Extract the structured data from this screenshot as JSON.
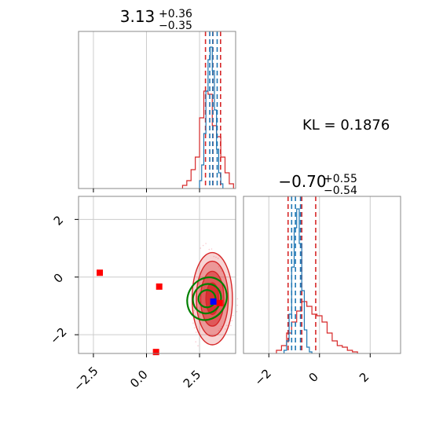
{
  "chart_data": {
    "type": "corner",
    "annotation": "KL = 0.1876",
    "colors": {
      "red": "#d62728",
      "blue": "#1f77b4",
      "green": "#008000",
      "marker_red": "#ff0000",
      "marker_blue": "#0000ff"
    },
    "panels": [
      {
        "id": "hist-param1",
        "type": "histogram",
        "title_value": "3.13",
        "title_plus": "+0.36",
        "title_minus": "−0.35",
        "xlim": [
          -3.2,
          4.2
        ],
        "x_ticks_labeled": false,
        "grid": true,
        "series": [
          {
            "name": "",
            "color": "#d62728",
            "bin_edges": [
              1.7,
              1.9,
              2.1,
              2.3,
              2.5,
              2.7,
              2.9,
              3.1,
              3.3,
              3.5,
              3.7,
              3.9,
              4.1
            ],
            "counts": [
              0.02,
              0.05,
              0.12,
              0.2,
              0.45,
              0.62,
              0.6,
              0.4,
              0.33,
              0.2,
              0.1,
              0.03
            ],
            "quantiles": [
              2.78,
              3.13,
              3.49
            ]
          },
          {
            "name": "",
            "color": "#1f77b4",
            "bin_edges": [
              2.5,
              2.6,
              2.7,
              2.8,
              2.9,
              3.0,
              3.1,
              3.2,
              3.3,
              3.4,
              3.5,
              3.6
            ],
            "counts": [
              0.05,
              0.15,
              0.35,
              0.62,
              0.82,
              0.9,
              0.75,
              0.5,
              0.25,
              0.1,
              0.03
            ],
            "quantiles": [
              2.98,
              3.12,
              3.33
            ]
          }
        ]
      },
      {
        "id": "scatter-2d",
        "type": "contour",
        "xlim": [
          -3.2,
          4.2
        ],
        "ylim": [
          -2.65,
          2.8
        ],
        "x_ticks": [
          -2.5,
          0.0,
          2.5
        ],
        "x_tick_labels": [
          "−2.5",
          "0.0",
          "2.5"
        ],
        "y_ticks": [
          -2,
          0,
          2
        ],
        "y_tick_labels": [
          "−2",
          "0",
          "2"
        ],
        "grid": true,
        "red_contours": {
          "center": [
            3.1,
            -0.75
          ],
          "levels": [
            {
              "rx": 0.95,
              "ry": 1.6,
              "opacity": 0.2
            },
            {
              "rx": 0.75,
              "ry": 1.3,
              "opacity": 0.35
            },
            {
              "rx": 0.55,
              "ry": 0.95,
              "opacity": 0.55
            },
            {
              "rx": 0.3,
              "ry": 0.55,
              "opacity": 0.8
            }
          ]
        },
        "green_contours": {
          "center": [
            2.85,
            -0.75
          ],
          "angle": 28,
          "levels": [
            {
              "rx": 0.9,
              "ry": 0.38
            },
            {
              "rx": 0.65,
              "ry": 0.26
            },
            {
              "rx": 0.4,
              "ry": 0.15
            }
          ]
        },
        "red_markers": [
          [
            -2.2,
            0.15
          ],
          [
            0.6,
            -0.33
          ],
          [
            0.45,
            -2.6
          ],
          [
            3.45,
            -0.9
          ]
        ],
        "blue_marker": [
          3.15,
          -0.85
        ]
      },
      {
        "id": "hist-param2",
        "type": "histogram",
        "title_value": "−0.70",
        "title_plus": "+0.55",
        "title_minus": "−0.54",
        "xlim": [
          -3.0,
          3.2
        ],
        "x_ticks": [
          -2,
          0,
          2
        ],
        "x_tick_labels": [
          "−2",
          "0",
          "2"
        ],
        "grid": true,
        "series": [
          {
            "name": "",
            "color": "#d62728",
            "bin_edges": [
              -1.7,
              -1.5,
              -1.3,
              -1.1,
              -0.9,
              -0.7,
              -0.5,
              -0.3,
              -0.1,
              0.1,
              0.3,
              0.5,
              0.7,
              0.9,
              1.1,
              1.3,
              1.5
            ],
            "counts": [
              0.02,
              0.05,
              0.13,
              0.2,
              0.27,
              0.33,
              0.3,
              0.25,
              0.24,
              0.2,
              0.13,
              0.08,
              0.05,
              0.04,
              0.02,
              0.01
            ],
            "quantiles": [
              -1.24,
              -0.7,
              -0.15
            ]
          },
          {
            "name": "",
            "color": "#1f77b4",
            "bin_edges": [
              -1.4,
              -1.3,
              -1.2,
              -1.1,
              -1.0,
              -0.9,
              -0.8,
              -0.7,
              -0.6,
              -0.5,
              -0.4,
              -0.3
            ],
            "counts": [
              0.02,
              0.08,
              0.25,
              0.55,
              0.8,
              0.92,
              0.7,
              0.4,
              0.15,
              0.04,
              0.01
            ],
            "quantiles": [
              -1.1,
              -0.95,
              -0.75
            ]
          }
        ]
      }
    ]
  }
}
